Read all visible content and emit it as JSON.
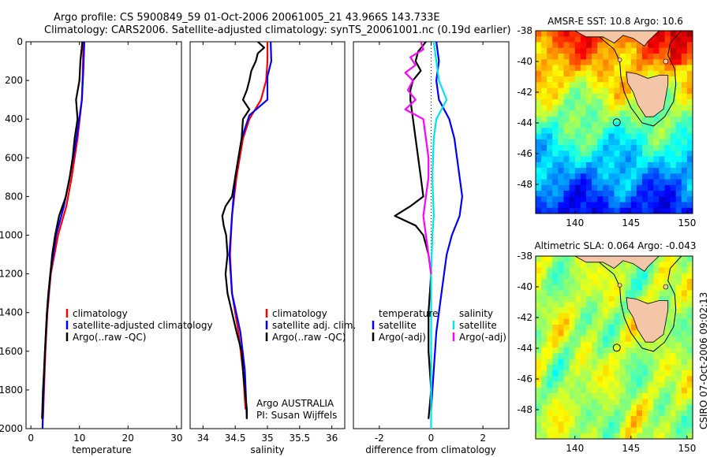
{
  "header": {
    "line1": "Argo profile: CS 5900849_59 01-Oct-2006 20061005_21 43.966S 143.733E",
    "line2": "Climatology: CARS2006. Satellite-adjusted climatology: synTS_20061001.nc (0.19d earlier)"
  },
  "stamp": "CSIRO 07-Oct-2006 09:02:13",
  "colors": {
    "climatology": "#ff0000",
    "satellite": "#0000ff",
    "argo": "#000000",
    "salinity_sat": "#00e5ee",
    "salinity_argo": "#ff00ff"
  },
  "chart_data": [
    {
      "type": "line",
      "name": "temperature",
      "xlabel": "temperature",
      "xlim": [
        -1,
        31
      ],
      "ylim": [
        0,
        2000
      ],
      "xticks": [
        0,
        10,
        20,
        30
      ],
      "yticks": [
        0,
        200,
        400,
        600,
        800,
        1000,
        1200,
        1400,
        1600,
        1800,
        2000
      ],
      "legend": [
        "climatology",
        "satellite-adjusted climatology",
        "Argo(..raw -QC)"
      ],
      "series": [
        {
          "name": "climatology",
          "color": "#ff0000",
          "depth": [
            0,
            150,
            300,
            500,
            700,
            850,
            1000,
            1200,
            1400,
            1600,
            1800,
            1950
          ],
          "values": [
            10.8,
            10.7,
            10.5,
            9.6,
            8.4,
            7.3,
            5.6,
            4.1,
            3.4,
            3.0,
            2.7,
            2.5
          ]
        },
        {
          "name": "satellite-adjusted climatology",
          "color": "#0000ff",
          "depth": [
            0,
            150,
            300,
            500,
            700,
            850,
            1000,
            1200,
            1400,
            1600,
            1800,
            2000
          ],
          "values": [
            11.0,
            10.8,
            10.5,
            9.4,
            8.0,
            6.8,
            5.2,
            4.0,
            3.3,
            2.9,
            2.6,
            2.4
          ]
        },
        {
          "name": "Argo(..raw -QC)",
          "color": "#000000",
          "depth": [
            0,
            100,
            200,
            300,
            400,
            500,
            600,
            700,
            800,
            900,
            1000,
            1100,
            1200,
            1300,
            1400,
            1500,
            1600,
            1700,
            1800,
            1950
          ],
          "values": [
            10.6,
            10.2,
            10.0,
            9.3,
            9.6,
            9.0,
            8.6,
            8.0,
            7.2,
            5.8,
            5.0,
            4.4,
            4.0,
            3.6,
            3.3,
            3.1,
            2.9,
            2.7,
            2.5,
            2.3
          ]
        }
      ]
    },
    {
      "type": "line",
      "name": "salinity",
      "xlabel": "salinity",
      "xlim": [
        33.8,
        36.2
      ],
      "ylim": [
        0,
        2000
      ],
      "xticks": [
        34,
        34.5,
        35,
        35.5,
        36
      ],
      "legend": [
        "climatology",
        "satellite adj. clim.",
        "Argo(..raw -QC)"
      ],
      "annotation": [
        "Argo AUSTRALIA",
        "PI: Susan Wijffels"
      ],
      "series": [
        {
          "name": "climatology",
          "color": "#ff0000",
          "depth": [
            0,
            100,
            200,
            300,
            400,
            500,
            700,
            900,
            1100,
            1300,
            1500,
            1700,
            1900
          ],
          "values": [
            35.0,
            35.0,
            34.98,
            34.9,
            34.72,
            34.62,
            34.52,
            34.45,
            34.42,
            34.45,
            34.55,
            34.62,
            34.66
          ]
        },
        {
          "name": "satellite adj. clim.",
          "color": "#0000ff",
          "depth": [
            0,
            100,
            180,
            300,
            380,
            500,
            700,
            900,
            1100,
            1300,
            1500,
            1700,
            1950
          ],
          "values": [
            35.05,
            35.06,
            35.0,
            35.0,
            34.72,
            34.6,
            34.5,
            34.45,
            34.41,
            34.45,
            34.58,
            34.65,
            34.68
          ]
        },
        {
          "name": "Argo(..raw -QC)",
          "color": "#000000",
          "depth": [
            0,
            30,
            60,
            100,
            150,
            200,
            250,
            300,
            350,
            400,
            500,
            600,
            700,
            800,
            850,
            900,
            950,
            1000,
            1100,
            1200,
            1300,
            1400,
            1500,
            1600,
            1700,
            1800,
            1900,
            1950
          ],
          "values": [
            34.85,
            34.95,
            34.85,
            34.82,
            34.75,
            34.72,
            34.68,
            34.62,
            34.72,
            34.62,
            34.6,
            34.55,
            34.5,
            34.45,
            34.35,
            34.3,
            34.32,
            34.36,
            34.38,
            34.35,
            34.38,
            34.45,
            34.52,
            34.6,
            34.62,
            34.65,
            34.68,
            34.68
          ]
        }
      ]
    },
    {
      "type": "line",
      "name": "difference",
      "xlabel": "difference from climatology",
      "xlim": [
        -3,
        3
      ],
      "ylim": [
        0,
        2000
      ],
      "xticks": [
        -2,
        0,
        2
      ],
      "legend_left": [
        "temperature",
        "satellite",
        "Argo(-adj)"
      ],
      "legend_right": [
        "salinity",
        "satellite",
        "Argo(-adj)"
      ],
      "series": [
        {
          "name": "temperature satellite",
          "color": "#0000ff",
          "depth": [
            0,
            100,
            200,
            300,
            400,
            500,
            600,
            700,
            800,
            900,
            1000,
            1100,
            1200,
            1300,
            1500,
            1700,
            1900
          ],
          "values": [
            0.2,
            0.3,
            0.2,
            0.3,
            0.7,
            0.9,
            1.0,
            1.1,
            1.2,
            1.1,
            0.8,
            0.6,
            0.5,
            0.4,
            0.2,
            0.1,
            0.0
          ]
        },
        {
          "name": "temperature Argo(-adj)",
          "color": "#000000",
          "depth": [
            0,
            50,
            100,
            150,
            200,
            250,
            300,
            400,
            500,
            600,
            700,
            800,
            850,
            900,
            950,
            1000,
            1100,
            1200,
            1400,
            1600,
            1800,
            1950
          ],
          "values": [
            -0.2,
            -0.5,
            -0.6,
            -0.4,
            -0.7,
            -0.8,
            -0.8,
            -0.7,
            -0.6,
            -0.5,
            -0.4,
            -0.3,
            -0.8,
            -1.4,
            -0.6,
            -0.3,
            -0.1,
            0.0,
            -0.1,
            -0.1,
            0.0,
            -0.1
          ]
        },
        {
          "name": "salinity satellite",
          "color": "#00e5ee",
          "depth": [
            0,
            100,
            200,
            300,
            400,
            500,
            700,
            900,
            1000,
            1200,
            1500,
            1800,
            2000
          ],
          "values": [
            0.1,
            0.2,
            0.3,
            0.6,
            0.2,
            0.1,
            0.05,
            0.1,
            0.05,
            0.0,
            0.0,
            0.0,
            0.0
          ]
        },
        {
          "name": "salinity Argo(-adj)",
          "color": "#ff00ff",
          "depth": [
            0,
            40,
            80,
            120,
            160,
            200,
            250,
            300,
            350,
            400,
            500,
            600,
            700,
            800,
            900,
            1000,
            1100,
            1200
          ],
          "values": [
            -0.4,
            -0.3,
            -0.8,
            -0.6,
            -1.0,
            -0.7,
            -0.9,
            -0.6,
            -1.0,
            -0.3,
            -0.2,
            -0.1,
            -0.1,
            -0.2,
            -0.3,
            -0.2,
            -0.1,
            0.0
          ]
        }
      ]
    },
    {
      "type": "heatmap",
      "name": "sst_map",
      "title": "AMSR-E SST: 10.8 Argo: 10.6",
      "xlim": [
        136.5,
        150.5
      ],
      "ylim": [
        -49.9,
        -38
      ],
      "xticks": [
        140,
        145,
        150
      ],
      "yticks": [
        -38,
        -40,
        -42,
        -44,
        -46,
        -48
      ],
      "argo_position": [
        143.733,
        -43.966
      ]
    },
    {
      "type": "heatmap",
      "name": "sla_map",
      "title": "Altimetric SLA: 0.064 Argo: -0.043",
      "xlim": [
        136.5,
        150.5
      ],
      "ylim": [
        -49.9,
        -38
      ],
      "xticks": [
        140,
        145,
        150
      ],
      "yticks": [
        -38,
        -40,
        -42,
        -44,
        -46,
        -48
      ],
      "argo_position": [
        143.733,
        -43.966
      ]
    }
  ]
}
